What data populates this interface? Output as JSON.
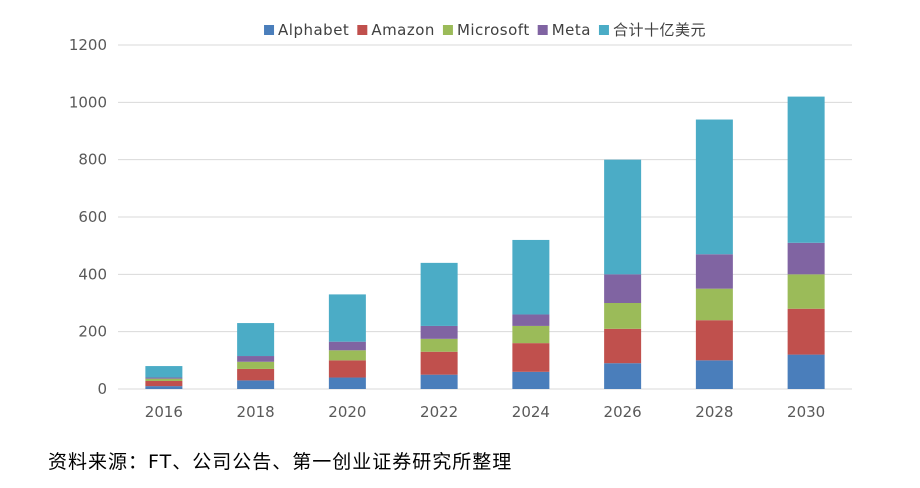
{
  "chart_data": {
    "type": "bar",
    "stacked": true,
    "categories": [
      "2016",
      "2018",
      "2020",
      "2022",
      "2024",
      "2026",
      "2028",
      "2030"
    ],
    "series": [
      {
        "name": "Alphabet",
        "color": "#4a7ebb",
        "values": [
          10,
          30,
          40,
          50,
          60,
          90,
          100,
          120
        ]
      },
      {
        "name": "Amazon",
        "color": "#c0504d",
        "values": [
          18,
          40,
          60,
          80,
          100,
          120,
          140,
          160
        ]
      },
      {
        "name": "Microsoft",
        "color": "#9bbb59",
        "values": [
          8,
          25,
          35,
          45,
          60,
          90,
          110,
          120
        ]
      },
      {
        "name": "Meta",
        "color": "#8064a2",
        "values": [
          4,
          20,
          30,
          45,
          40,
          100,
          120,
          110
        ]
      },
      {
        "name": "合计十亿美元",
        "color": "#4bacc6",
        "values": [
          40,
          115,
          165,
          220,
          260,
          400,
          470,
          510
        ]
      }
    ],
    "yticks": [
      0,
      200,
      400,
      600,
      800,
      1000,
      1200
    ],
    "ylim": [
      0,
      1200
    ],
    "legend_position": "top",
    "grid": true
  },
  "source_note": "资料来源：FT、公司公告、第一创业证券研究所整理"
}
